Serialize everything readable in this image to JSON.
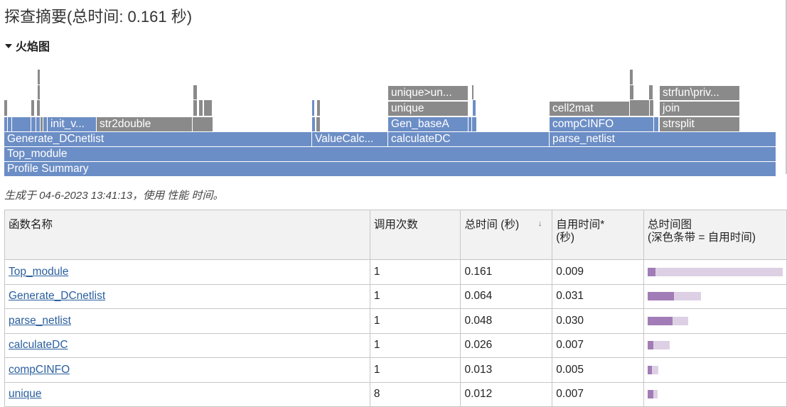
{
  "header": {
    "title": "探查摘要(总时间: 0.161 秒)"
  },
  "section": {
    "label": "火焰图"
  },
  "flame": {
    "blocks": [
      {
        "label": "Profile Summary",
        "color": "#6c8ec6"
      },
      {
        "label": "Top_module",
        "color": "#6c8ec6"
      },
      {
        "label": "Generate_DCnetlist",
        "color": "#6c8ec6"
      },
      {
        "label": "ValueCalc...",
        "color": "#6c8ec6"
      },
      {
        "label": "calculateDC",
        "color": "#6c8ec6"
      },
      {
        "label": "parse_netlist",
        "color": "#6c8ec6"
      },
      {
        "label": "init_v...",
        "color": "#6c8ec6"
      },
      {
        "label": "str2double",
        "color": "#8a8a8a"
      },
      {
        "label": "Gen_baseA",
        "color": "#6c8ec6"
      },
      {
        "label": "compCINFO",
        "color": "#6c8ec6"
      },
      {
        "label": "strsplit",
        "color": "#8a8a8a"
      },
      {
        "label": "unique",
        "color": "#8a8a8a"
      },
      {
        "label": "cell2mat",
        "color": "#8a8a8a"
      },
      {
        "label": "join",
        "color": "#8a8a8a"
      },
      {
        "label": "unique>un...",
        "color": "#8a8a8a"
      },
      {
        "label": "strfun\\priv...",
        "color": "#8a8a8a"
      }
    ]
  },
  "generated": {
    "text": "生成于 04-6-2023 13:41:13，使用 性能 时间。"
  },
  "table": {
    "headers": {
      "name": "函数名称",
      "calls": "调用次数",
      "total": "总时间 (秒)",
      "self_line1": "自用时间*",
      "self_line2": "(秒)",
      "plot_line1": "总时间图",
      "plot_line2": "(深色条带 = 自用时间)"
    },
    "rows": [
      {
        "name": "Top_module",
        "calls": "1",
        "total": "0.161",
        "self": "0.009"
      },
      {
        "name": "Generate_DCnetlist",
        "calls": "1",
        "total": "0.064",
        "self": "0.031"
      },
      {
        "name": "parse_netlist",
        "calls": "1",
        "total": "0.048",
        "self": "0.030"
      },
      {
        "name": "calculateDC",
        "calls": "1",
        "total": "0.026",
        "self": "0.007"
      },
      {
        "name": "compCINFO",
        "calls": "1",
        "total": "0.013",
        "self": "0.005"
      },
      {
        "name": "unique",
        "calls": "8",
        "total": "0.012",
        "self": "0.007"
      }
    ]
  },
  "colors": {
    "bar_total": "#ddd0e5",
    "bar_self": "#a27cb6",
    "flame_blue": "#6c8ec6",
    "flame_gray": "#8a8a8a",
    "link": "#2a5f9e"
  }
}
